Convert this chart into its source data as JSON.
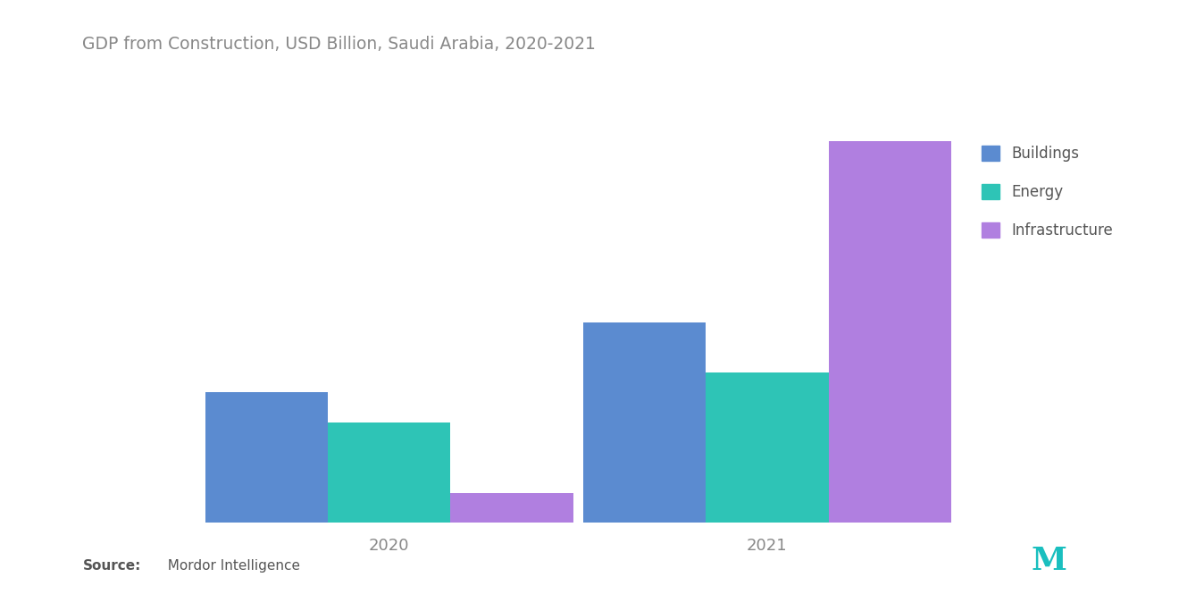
{
  "title": "GDP from Construction, USD Billion, Saudi Arabia, 2020-2021",
  "categories": [
    "2020",
    "2021"
  ],
  "series": {
    "Buildings": [
      13,
      20
    ],
    "Energy": [
      10,
      15
    ],
    "Infrastructure": [
      3,
      38
    ]
  },
  "colors": {
    "Buildings": "#5B8BD0",
    "Energy": "#2EC4B6",
    "Infrastructure": "#B07FE0"
  },
  "legend_labels": [
    "Buildings",
    "Energy",
    "Infrastructure"
  ],
  "source_bold": "Source:",
  "source_normal": "  Mordor Intelligence",
  "background_color": "#ffffff",
  "title_fontsize": 13.5,
  "tick_fontsize": 13,
  "legend_fontsize": 12,
  "bar_width": 0.12,
  "ylim_max": 45
}
